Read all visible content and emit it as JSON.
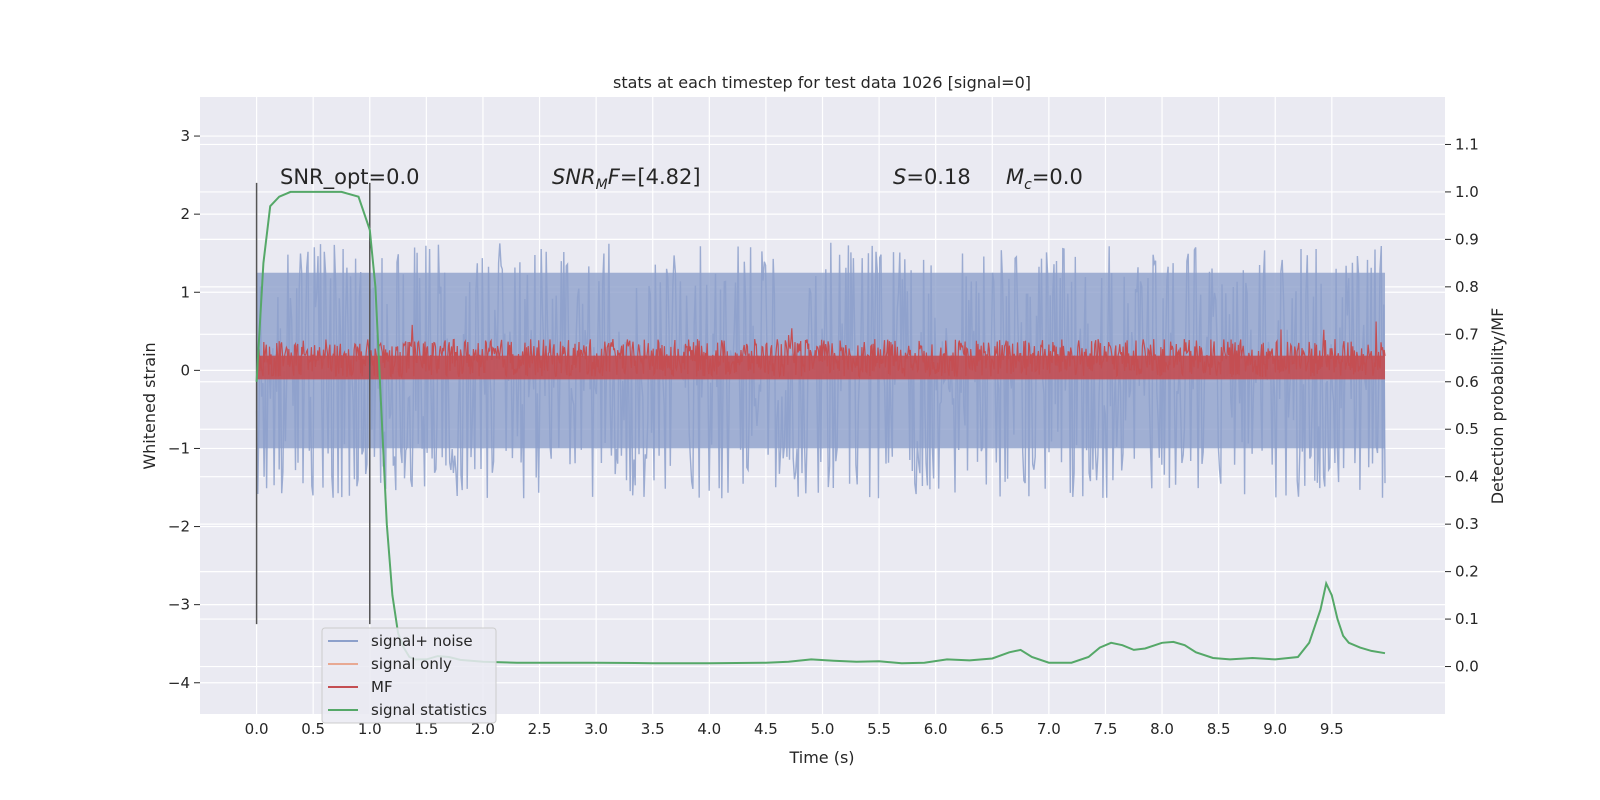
{
  "chart_data": {
    "type": "line",
    "title": "stats at each timestep for test data 1026 [signal=0]",
    "xlabel": "Time (s)",
    "ylabel": "Whitened strain",
    "y2label": "Detection probability/MF",
    "xlim": [
      -0.5,
      10.5
    ],
    "ylim": [
      -4.4,
      3.5
    ],
    "y2lim": [
      -0.1,
      1.2
    ],
    "grid": true,
    "legend_position": "lower-left",
    "x_ticks": [
      "0.0",
      "0.5",
      "1.0",
      "1.5",
      "2.0",
      "2.5",
      "3.0",
      "3.5",
      "4.0",
      "4.5",
      "5.0",
      "5.5",
      "6.0",
      "6.5",
      "7.0",
      "7.5",
      "8.0",
      "8.5",
      "9.0",
      "9.5"
    ],
    "y_ticks": [
      "3",
      "2",
      "1",
      "0",
      "−1",
      "−2",
      "−3",
      "−4"
    ],
    "y2_ticks": [
      "1.1",
      "1.0",
      "0.9",
      "0.8",
      "0.7",
      "0.6",
      "0.5",
      "0.4",
      "0.3",
      "0.2",
      "0.1",
      "0.0"
    ],
    "annotations": {
      "snr_opt": "SNR_opt=0.0",
      "snr_mf_sym": "SNR",
      "snr_mf_sub": "M",
      "snr_mf_sym2": "F",
      "snr_mf_val": "=[4.82]",
      "s_sym": "S",
      "s_val": "=0.18",
      "mc_sym": "M",
      "mc_sub": "c",
      "mc_val": "=0.0"
    },
    "vlines": [
      0.0,
      1.0
    ],
    "series": [
      {
        "name": "signal+ noise",
        "color": "#8da0cb",
        "axis": "left",
        "range": [
          -1.8,
          1.5
        ],
        "t_start": 0.0,
        "t_end": 9.97
      },
      {
        "name": "signal only",
        "color": "#e8a993",
        "axis": "left",
        "values": []
      },
      {
        "name": "MF",
        "color": "#c44e52",
        "axis": "right",
        "range": [
          0.6,
          0.72
        ],
        "t_start": 0.0,
        "t_end": 9.97
      },
      {
        "name": "signal statistics",
        "color": "#55a868",
        "axis": "right",
        "x": [
          0.0,
          0.06,
          0.12,
          0.2,
          0.3,
          0.45,
          0.6,
          0.75,
          0.9,
          1.0,
          1.05,
          1.1,
          1.15,
          1.2,
          1.25,
          1.3,
          1.35,
          1.4,
          1.5,
          1.6,
          1.7,
          1.8,
          2.0,
          2.3,
          2.6,
          3.0,
          3.5,
          4.0,
          4.5,
          4.7,
          4.9,
          5.1,
          5.3,
          5.5,
          5.7,
          5.9,
          6.1,
          6.3,
          6.5,
          6.65,
          6.75,
          6.85,
          7.0,
          7.2,
          7.35,
          7.45,
          7.55,
          7.65,
          7.75,
          7.85,
          8.0,
          8.1,
          8.2,
          8.3,
          8.45,
          8.6,
          8.8,
          9.0,
          9.2,
          9.3,
          9.4,
          9.45,
          9.5,
          9.55,
          9.6,
          9.65,
          9.75,
          9.85,
          9.97
        ],
        "values": [
          0.6,
          0.85,
          0.97,
          0.99,
          1.0,
          1.0,
          1.0,
          1.0,
          0.99,
          0.92,
          0.8,
          0.55,
          0.3,
          0.15,
          0.07,
          0.04,
          0.02,
          0.015,
          0.015,
          0.022,
          0.02,
          0.014,
          0.01,
          0.008,
          0.008,
          0.008,
          0.007,
          0.007,
          0.008,
          0.01,
          0.015,
          0.012,
          0.01,
          0.011,
          0.007,
          0.008,
          0.015,
          0.013,
          0.017,
          0.03,
          0.035,
          0.02,
          0.008,
          0.008,
          0.02,
          0.04,
          0.05,
          0.045,
          0.035,
          0.038,
          0.05,
          0.052,
          0.045,
          0.03,
          0.018,
          0.015,
          0.018,
          0.015,
          0.02,
          0.05,
          0.12,
          0.175,
          0.15,
          0.1,
          0.065,
          0.05,
          0.04,
          0.033,
          0.028
        ]
      }
    ]
  },
  "legend": {
    "items": [
      "signal+ noise",
      "signal only",
      "MF",
      "signal statistics"
    ]
  }
}
